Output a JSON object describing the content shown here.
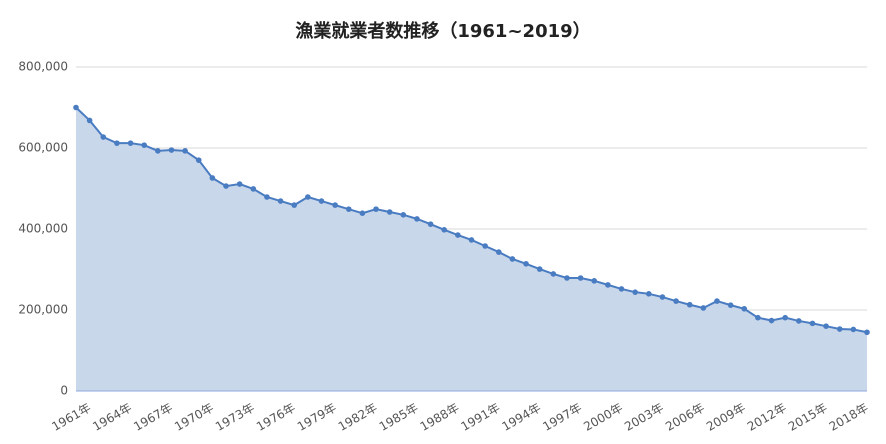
{
  "chart_data": {
    "type": "area",
    "title": "漁業就業者数推移（1961~2019）",
    "categories": [
      "1961年",
      null,
      null,
      "1964年",
      null,
      null,
      "1967年",
      null,
      null,
      "1970年",
      null,
      null,
      "1973年",
      null,
      null,
      "1976年",
      null,
      null,
      "1979年",
      null,
      null,
      "1982年",
      null,
      null,
      "1985年",
      null,
      null,
      "1988年",
      null,
      null,
      "1991年",
      null,
      null,
      "1994年",
      null,
      null,
      "1997年",
      null,
      null,
      "2000年",
      null,
      null,
      "2003年",
      null,
      null,
      "2006年",
      null,
      null,
      "2009年",
      null,
      null,
      "2012年",
      null,
      null,
      "2015年",
      null,
      null,
      "2018年",
      null
    ],
    "values": [
      700000,
      668000,
      627000,
      612000,
      612000,
      607000,
      593000,
      595000,
      593000,
      570000,
      526000,
      506000,
      511000,
      499000,
      479000,
      469000,
      459000,
      479000,
      469000,
      459000,
      449000,
      439000,
      449000,
      442000,
      435000,
      425000,
      412000,
      398000,
      385000,
      373000,
      358000,
      343000,
      326000,
      314000,
      301000,
      289000,
      279000,
      279000,
      272000,
      262000,
      252000,
      244000,
      240000,
      232000,
      222000,
      213000,
      205000,
      222000,
      212000,
      203000,
      181000,
      174000,
      181000,
      173000,
      167000,
      160000,
      153000,
      152000,
      145000
    ],
    "color": "#4a7cc2",
    "fill_color": "#c9d7ea",
    "ylim": [
      0,
      800000
    ],
    "yticks": [
      0,
      {
        "value": 200000,
        "label": "200,000"
      },
      {
        "value": 400000,
        "label": "400,000"
      },
      {
        "value": 600000,
        "label": "600,000"
      },
      {
        "value": 800000,
        "label": "800,000"
      }
    ],
    "grid": true
  }
}
